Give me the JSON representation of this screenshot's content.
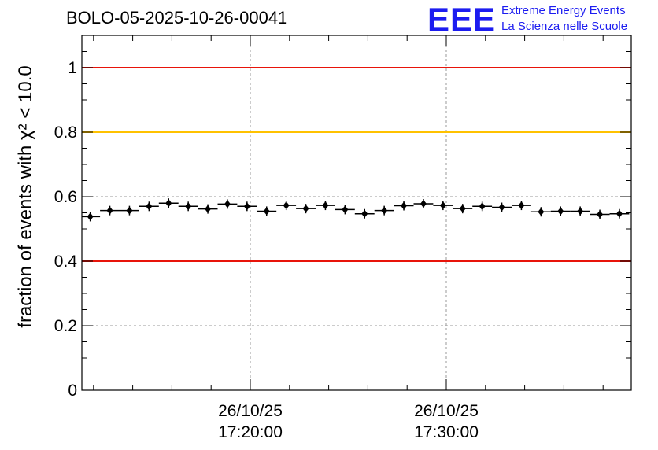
{
  "title": "BOLO-05-2025-10-26-00041",
  "logo": {
    "mark": "EEE",
    "line1": "Extreme Energy Events",
    "line2": "La Scienza nelle Scuole",
    "color": "#1c1cf0"
  },
  "chart_data": {
    "type": "scatter",
    "title": "BOLO-05-2025-10-26-00041",
    "ylabel": "fraction of events with χ² < 10.0",
    "xlabel": "",
    "ylim": [
      0,
      1.1
    ],
    "yticks": [
      0,
      0.2,
      0.4,
      0.6,
      0.8,
      1
    ],
    "ytick_labels": [
      "0",
      "0.2",
      "0.4",
      "0.6",
      "0.8",
      "1"
    ],
    "xticks": [
      {
        "date": "26/10/25",
        "time": "17:20:00"
      },
      {
        "date": "26/10/25",
        "time": "17:30:00"
      }
    ],
    "grid": true,
    "reference_lines": [
      {
        "y": 1.0,
        "color": "#e8140a"
      },
      {
        "y": 0.8,
        "color": "#ffc200"
      },
      {
        "y": 0.4,
        "color": "#e8140a"
      }
    ],
    "marker_color": "#000000",
    "points": [
      {
        "time": "17:11:50",
        "y": 0.538
      },
      {
        "time": "17:12:50",
        "y": 0.557
      },
      {
        "time": "17:13:50",
        "y": 0.557
      },
      {
        "time": "17:14:50",
        "y": 0.57
      },
      {
        "time": "17:15:50",
        "y": 0.58
      },
      {
        "time": "17:16:50",
        "y": 0.57
      },
      {
        "time": "17:17:50",
        "y": 0.562
      },
      {
        "time": "17:18:50",
        "y": 0.577
      },
      {
        "time": "17:19:50",
        "y": 0.57
      },
      {
        "time": "17:20:50",
        "y": 0.555
      },
      {
        "time": "17:21:50",
        "y": 0.573
      },
      {
        "time": "17:22:50",
        "y": 0.563
      },
      {
        "time": "17:23:50",
        "y": 0.573
      },
      {
        "time": "17:24:50",
        "y": 0.56
      },
      {
        "time": "17:25:50",
        "y": 0.547
      },
      {
        "time": "17:26:50",
        "y": 0.557
      },
      {
        "time": "17:27:50",
        "y": 0.572
      },
      {
        "time": "17:28:50",
        "y": 0.578
      },
      {
        "time": "17:29:50",
        "y": 0.573
      },
      {
        "time": "17:30:50",
        "y": 0.563
      },
      {
        "time": "17:31:50",
        "y": 0.57
      },
      {
        "time": "17:32:50",
        "y": 0.567
      },
      {
        "time": "17:33:50",
        "y": 0.573
      },
      {
        "time": "17:34:50",
        "y": 0.553
      },
      {
        "time": "17:35:50",
        "y": 0.555
      },
      {
        "time": "17:36:50",
        "y": 0.555
      },
      {
        "time": "17:37:50",
        "y": 0.545
      },
      {
        "time": "17:38:50",
        "y": 0.547
      }
    ]
  }
}
